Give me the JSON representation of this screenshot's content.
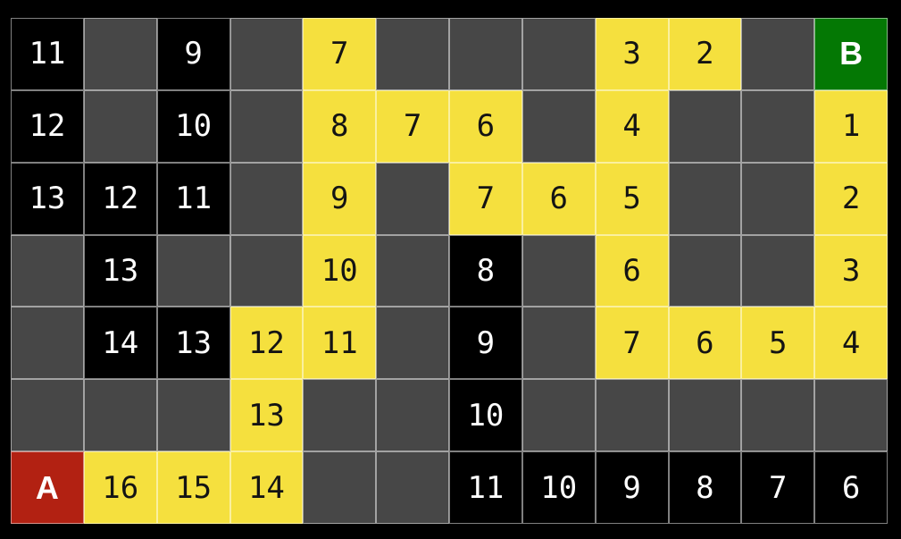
{
  "colors": {
    "background": "#000000",
    "wall": "#474747",
    "visited_bg": "#000000",
    "visited_text": "#ffffff",
    "path_bg": "#f5e03e",
    "path_text": "#141414",
    "start_bg": "#b22112",
    "goal_bg": "#047804",
    "grid_line": "rgba(255,255,255,0.5)"
  },
  "grid": {
    "rows": 7,
    "cols": 12,
    "start_label": "A",
    "goal_label": "B",
    "cells": [
      [
        {
          "type": "visited",
          "label": "11"
        },
        {
          "type": "wall",
          "label": ""
        },
        {
          "type": "visited",
          "label": "9"
        },
        {
          "type": "wall",
          "label": ""
        },
        {
          "type": "path",
          "label": "7"
        },
        {
          "type": "wall",
          "label": ""
        },
        {
          "type": "wall",
          "label": ""
        },
        {
          "type": "wall",
          "label": ""
        },
        {
          "type": "path",
          "label": "3"
        },
        {
          "type": "path",
          "label": "2"
        },
        {
          "type": "wall",
          "label": ""
        },
        {
          "type": "goal",
          "label": "B"
        }
      ],
      [
        {
          "type": "visited",
          "label": "12"
        },
        {
          "type": "wall",
          "label": ""
        },
        {
          "type": "visited",
          "label": "10"
        },
        {
          "type": "wall",
          "label": ""
        },
        {
          "type": "path",
          "label": "8"
        },
        {
          "type": "path",
          "label": "7"
        },
        {
          "type": "path",
          "label": "6"
        },
        {
          "type": "wall",
          "label": ""
        },
        {
          "type": "path",
          "label": "4"
        },
        {
          "type": "wall",
          "label": ""
        },
        {
          "type": "wall",
          "label": ""
        },
        {
          "type": "path",
          "label": "1"
        }
      ],
      [
        {
          "type": "visited",
          "label": "13"
        },
        {
          "type": "visited",
          "label": "12"
        },
        {
          "type": "visited",
          "label": "11"
        },
        {
          "type": "wall",
          "label": ""
        },
        {
          "type": "path",
          "label": "9"
        },
        {
          "type": "wall",
          "label": ""
        },
        {
          "type": "path",
          "label": "7"
        },
        {
          "type": "path",
          "label": "6"
        },
        {
          "type": "path",
          "label": "5"
        },
        {
          "type": "wall",
          "label": ""
        },
        {
          "type": "wall",
          "label": ""
        },
        {
          "type": "path",
          "label": "2"
        }
      ],
      [
        {
          "type": "wall",
          "label": ""
        },
        {
          "type": "visited",
          "label": "13"
        },
        {
          "type": "wall",
          "label": ""
        },
        {
          "type": "wall",
          "label": ""
        },
        {
          "type": "path",
          "label": "10"
        },
        {
          "type": "wall",
          "label": ""
        },
        {
          "type": "visited",
          "label": "8"
        },
        {
          "type": "wall",
          "label": ""
        },
        {
          "type": "path",
          "label": "6"
        },
        {
          "type": "wall",
          "label": ""
        },
        {
          "type": "wall",
          "label": ""
        },
        {
          "type": "path",
          "label": "3"
        }
      ],
      [
        {
          "type": "wall",
          "label": ""
        },
        {
          "type": "visited",
          "label": "14"
        },
        {
          "type": "visited",
          "label": "13"
        },
        {
          "type": "path",
          "label": "12"
        },
        {
          "type": "path",
          "label": "11"
        },
        {
          "type": "wall",
          "label": ""
        },
        {
          "type": "visited",
          "label": "9"
        },
        {
          "type": "wall",
          "label": ""
        },
        {
          "type": "path",
          "label": "7"
        },
        {
          "type": "path",
          "label": "6"
        },
        {
          "type": "path",
          "label": "5"
        },
        {
          "type": "path",
          "label": "4"
        }
      ],
      [
        {
          "type": "wall",
          "label": ""
        },
        {
          "type": "wall",
          "label": ""
        },
        {
          "type": "wall",
          "label": ""
        },
        {
          "type": "path",
          "label": "13"
        },
        {
          "type": "wall",
          "label": ""
        },
        {
          "type": "wall",
          "label": ""
        },
        {
          "type": "visited",
          "label": "10"
        },
        {
          "type": "wall",
          "label": ""
        },
        {
          "type": "wall",
          "label": ""
        },
        {
          "type": "wall",
          "label": ""
        },
        {
          "type": "wall",
          "label": ""
        },
        {
          "type": "wall",
          "label": ""
        }
      ],
      [
        {
          "type": "start",
          "label": "A"
        },
        {
          "type": "path",
          "label": "16"
        },
        {
          "type": "path",
          "label": "15"
        },
        {
          "type": "path",
          "label": "14"
        },
        {
          "type": "wall",
          "label": ""
        },
        {
          "type": "wall",
          "label": ""
        },
        {
          "type": "visited",
          "label": "11"
        },
        {
          "type": "visited",
          "label": "10"
        },
        {
          "type": "visited",
          "label": "9"
        },
        {
          "type": "visited",
          "label": "8"
        },
        {
          "type": "visited",
          "label": "7"
        },
        {
          "type": "visited",
          "label": "6"
        }
      ]
    ]
  }
}
